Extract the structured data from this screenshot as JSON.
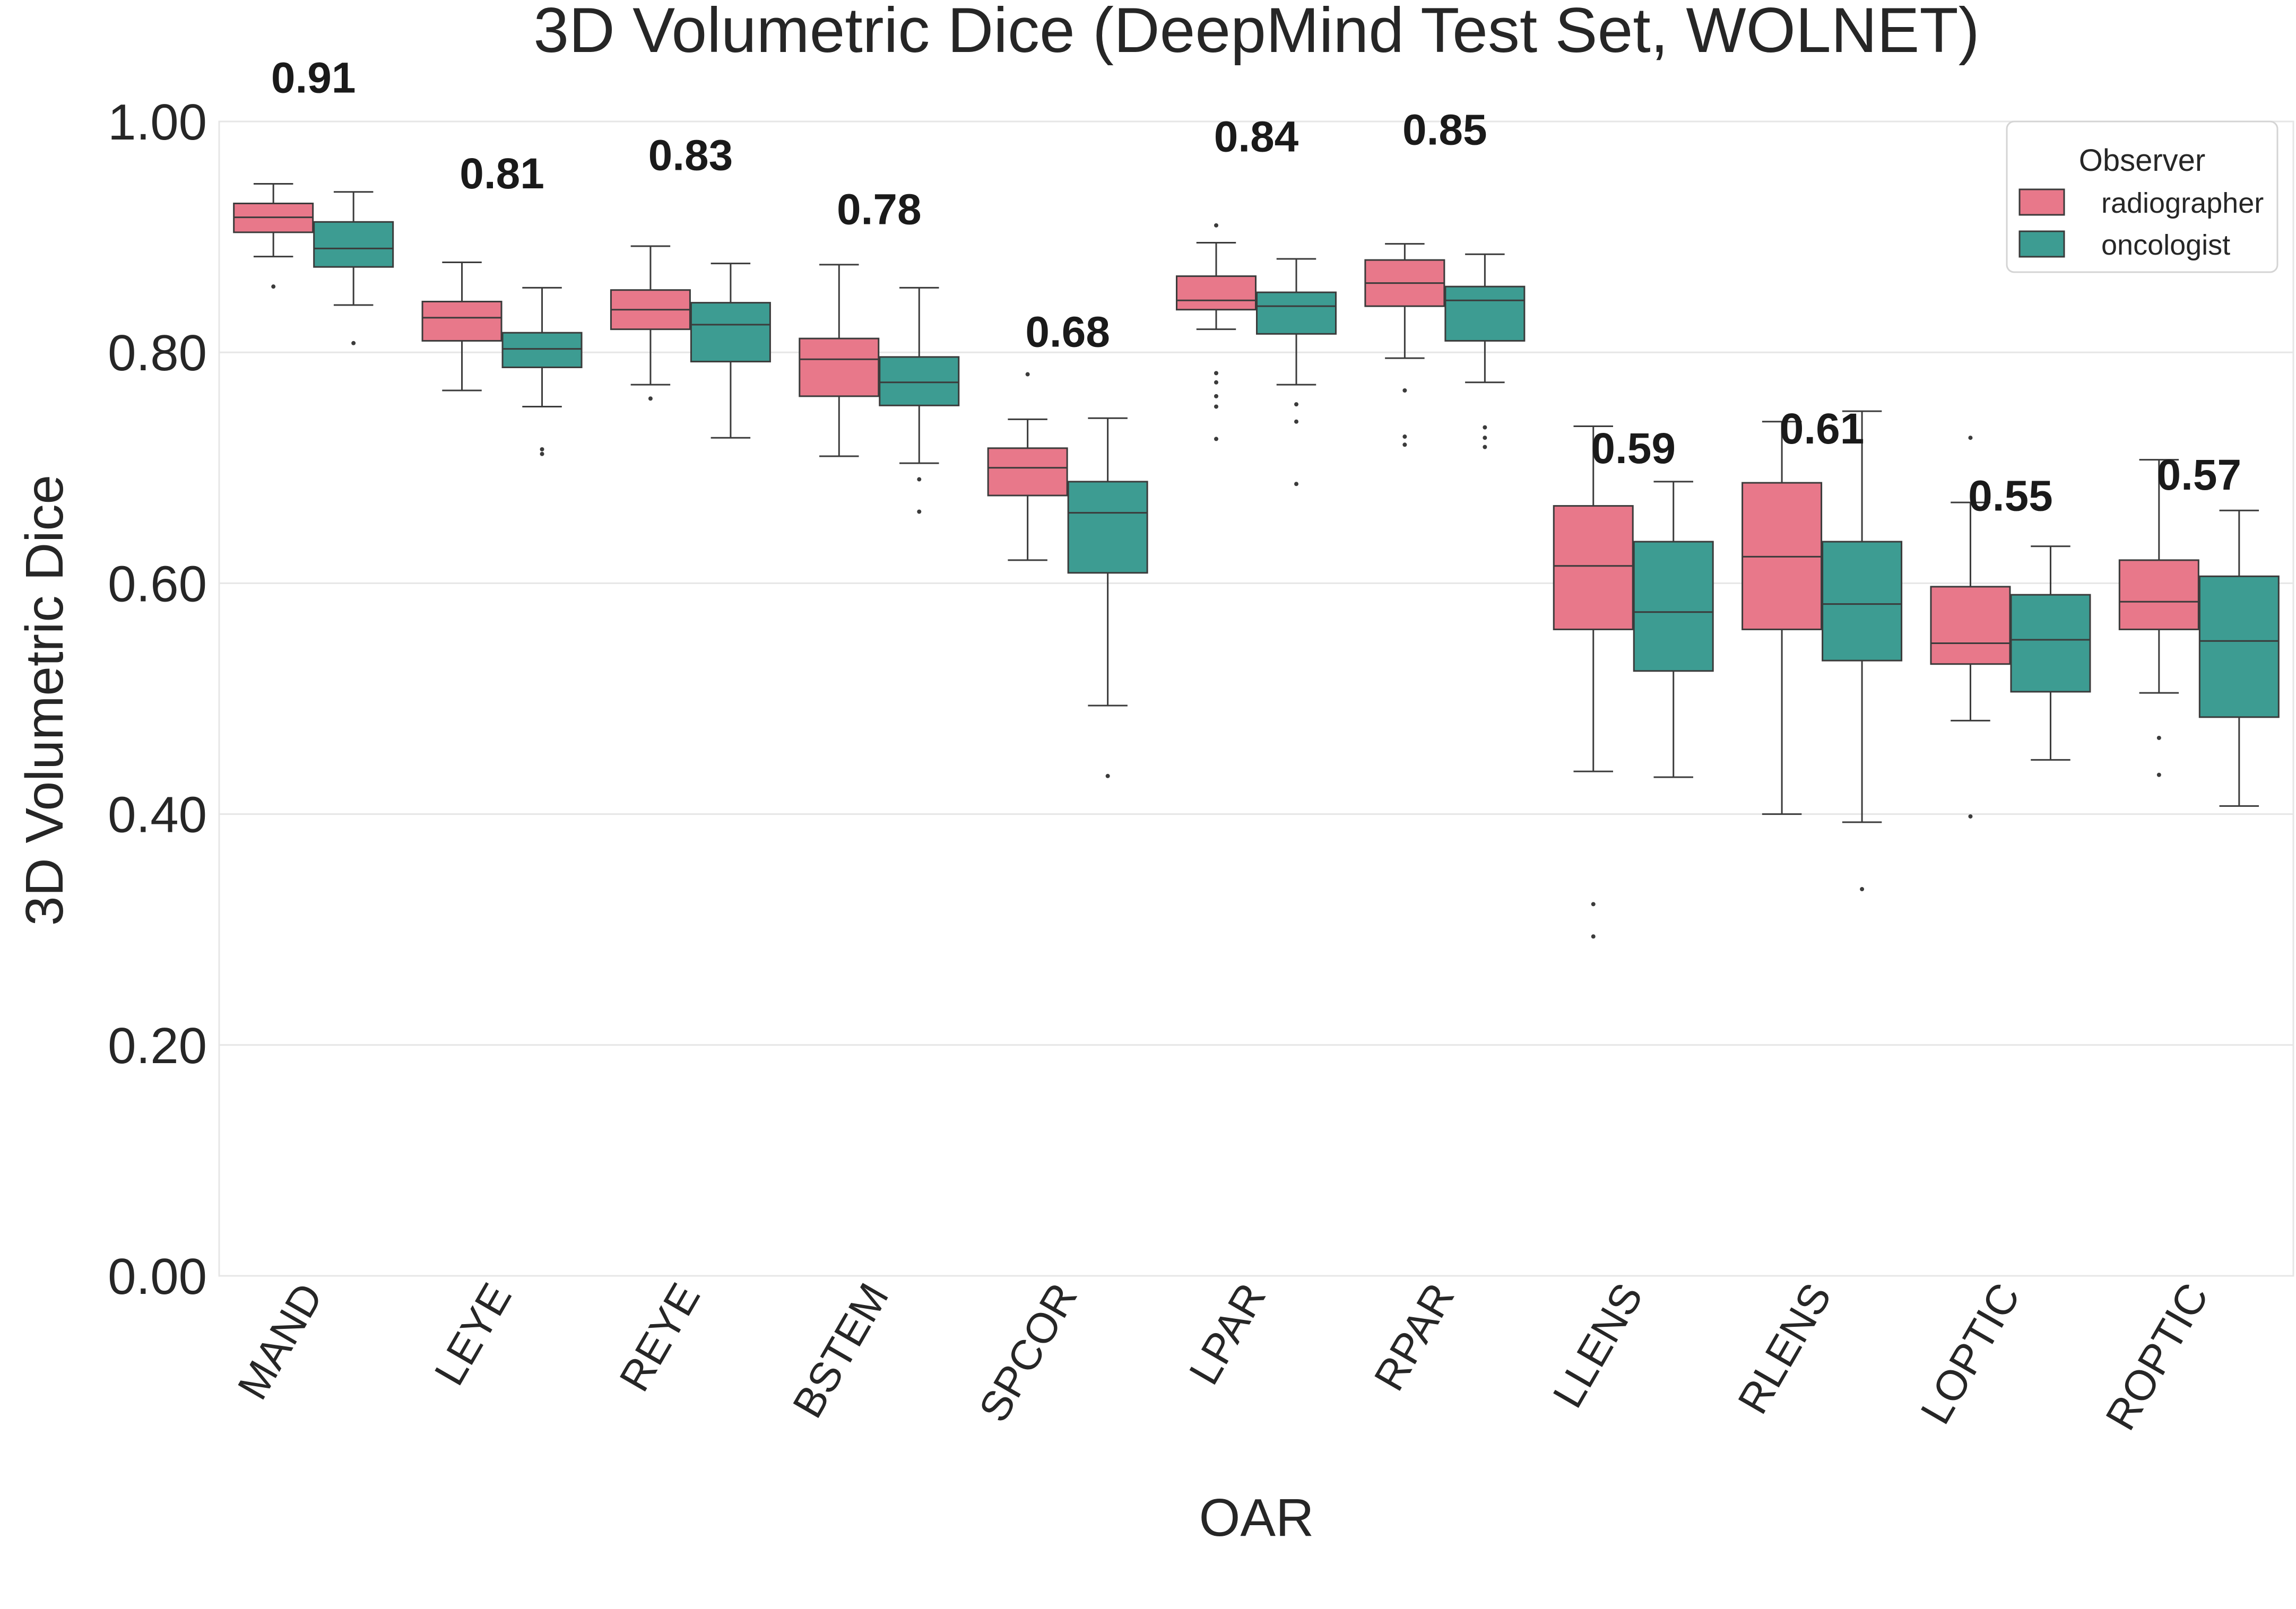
{
  "chart_data": {
    "type": "box",
    "title": "3D Volumetric Dice (DeepMind Test Set, WOLNET)",
    "xlabel": "OAR",
    "ylabel": "3D Volumetric Dice",
    "ylim": [
      0.0,
      1.0
    ],
    "yticks": [
      "0.00",
      "0.20",
      "0.40",
      "0.60",
      "0.80",
      "1.00"
    ],
    "grid": true,
    "legend": {
      "title": "Observer",
      "position": "top-right",
      "entries": [
        {
          "name": "radiographer",
          "color": "#e8788a"
        },
        {
          "name": "oncologist",
          "color": "#3d9c92"
        }
      ]
    },
    "categories": [
      "MAND",
      "LEYE",
      "REYE",
      "BSTEM",
      "SPCOR",
      "LPAR",
      "RPAR",
      "LLENS",
      "RLENS",
      "LOPTIC",
      "ROPTIC"
    ],
    "annotations": [
      "0.91",
      "0.81",
      "0.83",
      "0.78",
      "0.68",
      "0.84",
      "0.85",
      "0.59",
      "0.61",
      "0.55",
      "0.57"
    ],
    "annotation_y": [
      1.025,
      0.942,
      0.958,
      0.911,
      0.805,
      0.974,
      0.98,
      0.704,
      0.721,
      0.663,
      0.681
    ],
    "series": [
      {
        "name": "radiographer",
        "color": "#e8788a",
        "boxes": [
          {
            "whislo": 0.883,
            "q1": 0.904,
            "med": 0.917,
            "q3": 0.929,
            "whishi": 0.946,
            "fliers": [
              0.857
            ]
          },
          {
            "whislo": 0.767,
            "q1": 0.81,
            "med": 0.83,
            "q3": 0.844,
            "whishi": 0.878,
            "fliers": []
          },
          {
            "whislo": 0.772,
            "q1": 0.82,
            "med": 0.837,
            "q3": 0.854,
            "whishi": 0.892,
            "fliers": [
              0.76
            ]
          },
          {
            "whislo": 0.71,
            "q1": 0.762,
            "med": 0.794,
            "q3": 0.812,
            "whishi": 0.876,
            "fliers": []
          },
          {
            "whislo": 0.62,
            "q1": 0.676,
            "med": 0.7,
            "q3": 0.717,
            "whishi": 0.742,
            "fliers": [
              0.781
            ]
          },
          {
            "whislo": 0.82,
            "q1": 0.837,
            "med": 0.845,
            "q3": 0.866,
            "whishi": 0.895,
            "fliers": [
              0.91,
              0.782,
              0.774,
              0.762,
              0.753,
              0.725
            ]
          },
          {
            "whislo": 0.795,
            "q1": 0.84,
            "med": 0.86,
            "q3": 0.88,
            "whishi": 0.894,
            "fliers": [
              0.767,
              0.727,
              0.72
            ]
          },
          {
            "whislo": 0.437,
            "q1": 0.56,
            "med": 0.615,
            "q3": 0.667,
            "whishi": 0.736,
            "fliers": [
              0.322,
              0.294
            ]
          },
          {
            "whislo": 0.4,
            "q1": 0.56,
            "med": 0.623,
            "q3": 0.687,
            "whishi": 0.74,
            "fliers": []
          },
          {
            "whislo": 0.481,
            "q1": 0.53,
            "med": 0.548,
            "q3": 0.597,
            "whishi": 0.67,
            "fliers": [
              0.726,
              0.398
            ]
          },
          {
            "whislo": 0.505,
            "q1": 0.56,
            "med": 0.584,
            "q3": 0.62,
            "whishi": 0.707,
            "fliers": [
              0.466,
              0.434
            ]
          }
        ]
      },
      {
        "name": "oncologist",
        "color": "#3d9c92",
        "boxes": [
          {
            "whislo": 0.841,
            "q1": 0.874,
            "med": 0.89,
            "q3": 0.913,
            "whishi": 0.939,
            "fliers": [
              0.808
            ]
          },
          {
            "whislo": 0.753,
            "q1": 0.787,
            "med": 0.803,
            "q3": 0.817,
            "whishi": 0.856,
            "fliers": [
              0.716,
              0.712
            ]
          },
          {
            "whislo": 0.726,
            "q1": 0.792,
            "med": 0.824,
            "q3": 0.843,
            "whishi": 0.877,
            "fliers": []
          },
          {
            "whislo": 0.704,
            "q1": 0.754,
            "med": 0.774,
            "q3": 0.796,
            "whishi": 0.856,
            "fliers": [
              0.69,
              0.662
            ]
          },
          {
            "whislo": 0.494,
            "q1": 0.609,
            "med": 0.661,
            "q3": 0.688,
            "whishi": 0.743,
            "fliers": [
              0.433
            ]
          },
          {
            "whislo": 0.772,
            "q1": 0.816,
            "med": 0.84,
            "q3": 0.852,
            "whishi": 0.881,
            "fliers": [
              0.755,
              0.74,
              0.686
            ]
          },
          {
            "whislo": 0.774,
            "q1": 0.81,
            "med": 0.845,
            "q3": 0.857,
            "whishi": 0.885,
            "fliers": [
              0.735,
              0.726,
              0.718
            ]
          },
          {
            "whislo": 0.432,
            "q1": 0.524,
            "med": 0.575,
            "q3": 0.636,
            "whishi": 0.688,
            "fliers": []
          },
          {
            "whislo": 0.393,
            "q1": 0.533,
            "med": 0.582,
            "q3": 0.636,
            "whishi": 0.749,
            "fliers": [
              0.335
            ]
          },
          {
            "whislo": 0.447,
            "q1": 0.506,
            "med": 0.551,
            "q3": 0.59,
            "whishi": 0.632,
            "fliers": []
          },
          {
            "whislo": 0.407,
            "q1": 0.484,
            "med": 0.55,
            "q3": 0.606,
            "whishi": 0.663,
            "fliers": []
          }
        ]
      }
    ]
  }
}
